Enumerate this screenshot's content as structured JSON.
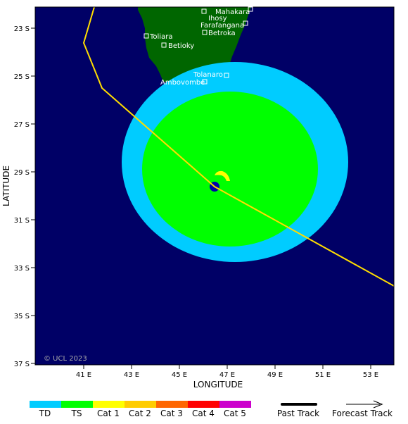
{
  "map": {
    "y_axis_label": "LATITUDE",
    "x_axis_label": "LONGITUDE",
    "copyright": "© UCL 2023",
    "lat_ticks": [
      "23 S",
      "25 S",
      "27 S",
      "29 S",
      "31 S",
      "33 S",
      "35 S",
      "37 S"
    ],
    "lon_ticks": [
      "41 E",
      "43 E",
      "45 E",
      "47 E",
      "49 E",
      "51 E",
      "53 E"
    ],
    "places": [
      {
        "name": "Mahakara",
        "marker": true
      },
      {
        "name": "Ihosy",
        "marker": false
      },
      {
        "name": "Farafangana",
        "marker": true
      },
      {
        "name": "Toliara",
        "marker": true
      },
      {
        "name": "Betroka",
        "marker": true
      },
      {
        "name": "Betioky",
        "marker": true
      },
      {
        "name": "Tolanaro",
        "marker": true
      },
      {
        "name": "Ambovombe",
        "marker": true
      }
    ],
    "colors": {
      "ocean": "#000066",
      "land": "#006600",
      "td_wind": "#00ccff",
      "ts_wind": "#00ff00",
      "cat1_wind": "#ffff00",
      "track": "#ffdd00",
      "storm_center": "#0000aa"
    }
  },
  "legend": {
    "categories": [
      {
        "label": "TD",
        "color": "#00ccff"
      },
      {
        "label": "TS",
        "color": "#00ff00"
      },
      {
        "label": "Cat 1",
        "color": "#ffff00"
      },
      {
        "label": "Cat 2",
        "color": "#ffcc00"
      },
      {
        "label": "Cat 3",
        "color": "#ff6600"
      },
      {
        "label": "Cat 4",
        "color": "#ff0000"
      },
      {
        "label": "Cat 5",
        "color": "#cc00cc"
      }
    ],
    "past_track_label": "Past Track",
    "forecast_track_label": "Forecast Track"
  }
}
